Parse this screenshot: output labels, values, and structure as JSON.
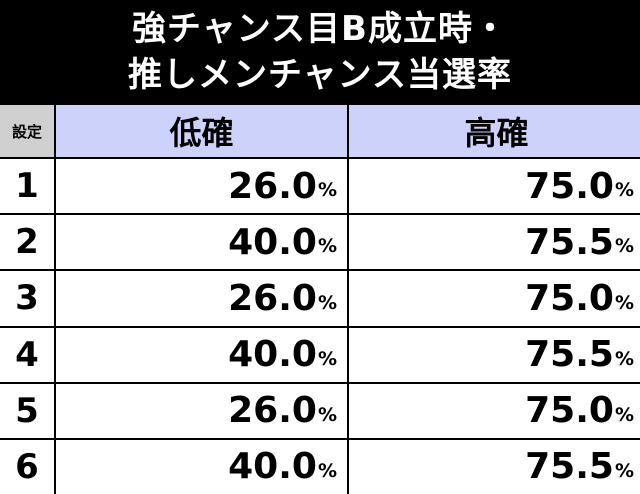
{
  "title": {
    "line1": "強チャンス目B成立時・",
    "line2": "推しメンチャンス当選率"
  },
  "table": {
    "headers": {
      "setting": "設定",
      "low": "低確",
      "high": "高確"
    },
    "percent_sign": "%",
    "rows": [
      {
        "setting": "1",
        "low": "26.0",
        "high": "75.0"
      },
      {
        "setting": "2",
        "low": "40.0",
        "high": "75.5"
      },
      {
        "setting": "3",
        "low": "26.0",
        "high": "75.0"
      },
      {
        "setting": "4",
        "low": "40.0",
        "high": "75.5"
      },
      {
        "setting": "5",
        "low": "26.0",
        "high": "75.0"
      },
      {
        "setting": "6",
        "low": "40.0",
        "high": "75.5"
      }
    ]
  }
}
